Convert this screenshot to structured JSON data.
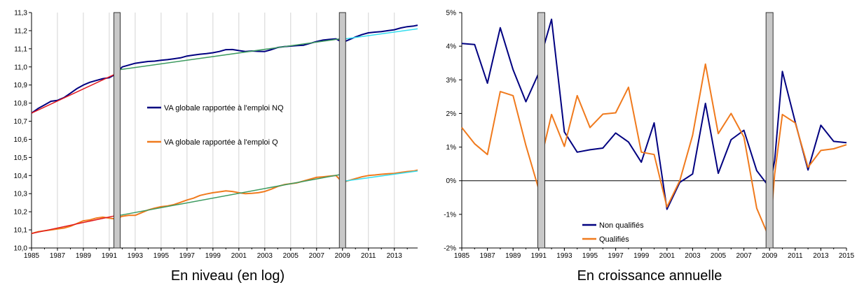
{
  "banner_text": "",
  "colors": {
    "navy": "#000080",
    "orange": "#f07a1d",
    "red": "#e0181e",
    "green": "#3c9a5f",
    "cyan": "#33ddee",
    "bar_fill": "#c8c8c8"
  },
  "chart_data": [
    {
      "type": "line",
      "caption": "En niveau (en log)",
      "xlabel": "",
      "ylabel": "",
      "xlim": [
        1985,
        2014.8
      ],
      "ylim": [
        10.0,
        11.3
      ],
      "y_ticks": [
        "10,0",
        "10,1",
        "10,2",
        "10,3",
        "10,4",
        "10,5",
        "10,6",
        "10,7",
        "10,8",
        "10,9",
        "11,0",
        "11,1",
        "11,2",
        "11,3"
      ],
      "x_ticks": [
        "1985",
        "1987",
        "1989",
        "1991",
        "1993",
        "1995",
        "1997",
        "1999",
        "2001",
        "2003",
        "2005",
        "2007",
        "2009",
        "2011",
        "2013"
      ],
      "grid": "vertical",
      "break_bars": [
        1991.6,
        2009
      ],
      "legend": [
        "VA globale rapportée à l'emploi NQ",
        "VA globale rapportée à l'emploi Q"
      ],
      "series": [
        {
          "name": "VA globale rapportée à l'emploi NQ",
          "color": "navy",
          "x": [
            1985,
            1985.5,
            1986,
            1986.5,
            1987,
            1987.5,
            1988,
            1988.5,
            1989,
            1989.5,
            1990,
            1990.5,
            1991,
            1991.5,
            1992,
            1992.5,
            1993,
            1993.5,
            1994,
            1994.5,
            1995,
            1995.5,
            1996,
            1996.5,
            1997,
            1997.5,
            1998,
            1998.5,
            1999,
            1999.5,
            2000,
            2000.5,
            2001,
            2001.5,
            2002,
            2002.5,
            2003,
            2003.5,
            2004,
            2004.5,
            2005,
            2005.5,
            2006,
            2006.5,
            2007,
            2007.5,
            2008,
            2008.5,
            2009,
            2009.5,
            2010,
            2010.5,
            2011,
            2011.5,
            2012,
            2012.5,
            2013,
            2013.5,
            2014,
            2014.5,
            2014.8
          ],
          "y": [
            10.745,
            10.77,
            10.79,
            10.81,
            10.815,
            10.83,
            10.855,
            10.88,
            10.9,
            10.915,
            10.925,
            10.935,
            10.94,
            10.96,
            11.0,
            11.01,
            11.02,
            11.025,
            11.03,
            11.032,
            11.037,
            11.04,
            11.045,
            11.05,
            11.06,
            11.065,
            11.07,
            11.073,
            11.078,
            11.085,
            11.095,
            11.096,
            11.09,
            11.085,
            11.088,
            11.086,
            11.085,
            11.095,
            11.107,
            11.112,
            11.115,
            11.118,
            11.12,
            11.13,
            11.14,
            11.148,
            11.152,
            11.155,
            11.135,
            11.15,
            11.165,
            11.178,
            11.188,
            11.192,
            11.195,
            11.2,
            11.205,
            11.215,
            11.222,
            11.226,
            11.23
          ]
        },
        {
          "name": "VA globale rapportée à l'emploi Q",
          "color": "orange",
          "x": [
            1985,
            1985.5,
            1986,
            1986.5,
            1987,
            1987.5,
            1988,
            1988.5,
            1989,
            1989.5,
            1990,
            1990.5,
            1991,
            1991.5,
            1992,
            1992.5,
            1993,
            1993.5,
            1994,
            1994.5,
            1995,
            1995.5,
            1996,
            1996.5,
            1997,
            1997.5,
            1998,
            1998.5,
            1999,
            1999.5,
            2000,
            2000.5,
            2001,
            2001.5,
            2002,
            2002.5,
            2003,
            2003.5,
            2004,
            2004.5,
            2005,
            2005.5,
            2006,
            2006.5,
            2007,
            2007.5,
            2008,
            2008.5,
            2009,
            2009.5,
            2010,
            2010.5,
            2011,
            2011.5,
            2012,
            2012.5,
            2013,
            2013.5,
            2014,
            2014.5,
            2014.8
          ],
          "y": [
            10.08,
            10.09,
            10.095,
            10.1,
            10.105,
            10.11,
            10.12,
            10.135,
            10.15,
            10.155,
            10.165,
            10.17,
            10.165,
            10.16,
            10.175,
            10.18,
            10.18,
            10.195,
            10.21,
            10.22,
            10.228,
            10.232,
            10.24,
            10.252,
            10.265,
            10.275,
            10.29,
            10.298,
            10.305,
            10.31,
            10.315,
            10.312,
            10.305,
            10.3,
            10.302,
            10.305,
            10.312,
            10.325,
            10.34,
            10.35,
            10.355,
            10.36,
            10.37,
            10.38,
            10.39,
            10.393,
            10.397,
            10.4,
            10.362,
            10.373,
            10.383,
            10.393,
            10.4,
            10.403,
            10.407,
            10.41,
            10.412,
            10.417,
            10.422,
            10.425,
            10.43
          ]
        },
        {
          "name": "",
          "color": "red",
          "x": [
            1985,
            1991.6
          ],
          "y": [
            10.745,
            10.965
          ]
        },
        {
          "name": "",
          "color": "green",
          "x": [
            1991.8,
            2008.8
          ],
          "y": [
            10.985,
            11.155
          ]
        },
        {
          "name": "",
          "color": "cyan",
          "x": [
            2009.2,
            2014.8
          ],
          "y": [
            11.155,
            11.21
          ]
        },
        {
          "name": "",
          "color": "red",
          "x": [
            1985,
            1991.6
          ],
          "y": [
            10.08,
            10.18
          ]
        },
        {
          "name": "",
          "color": "green",
          "x": [
            1991.8,
            2008.8
          ],
          "y": [
            10.18,
            10.405
          ]
        },
        {
          "name": "",
          "color": "cyan",
          "x": [
            2009.2,
            2014.8
          ],
          "y": [
            10.37,
            10.425
          ]
        }
      ]
    },
    {
      "type": "line",
      "caption": "En croissance annuelle",
      "xlabel": "",
      "ylabel": "",
      "xlim": [
        1985,
        2015
      ],
      "ylim": [
        -2,
        5
      ],
      "y_ticks": [
        "-2%",
        "-1%",
        "0%",
        "1%",
        "2%",
        "3%",
        "4%",
        "5%"
      ],
      "x_ticks": [
        "1985",
        "1987",
        "1989",
        "1991",
        "1993",
        "1995",
        "1997",
        "1999",
        "2001",
        "2003",
        "2005",
        "2007",
        "2009",
        "2011",
        "2013",
        "2015"
      ],
      "x_tick_values": [
        1985,
        1987,
        1989,
        1991,
        1993,
        1995,
        1997,
        1999,
        2001,
        2003,
        2005,
        2007,
        2009,
        2011,
        2013,
        2015
      ],
      "break_bars": [
        1991.2,
        2009
      ],
      "legend": [
        "Non qualifiés",
        "Qualifiés"
      ],
      "series": [
        {
          "name": "Non qualifiés",
          "color": "navy",
          "x": [
            1985,
            1986,
            1987,
            1988,
            1989,
            1990,
            1991,
            1991.4,
            1992,
            1993,
            1994,
            1995,
            1996,
            1997,
            1998,
            1999,
            2000,
            2001,
            2002,
            2003,
            2004,
            2005,
            2006,
            2007,
            2008,
            2009,
            2009.4,
            2010,
            2011,
            2012,
            2013,
            2014,
            2015
          ],
          "y": [
            4.08,
            4.05,
            2.9,
            4.55,
            3.3,
            2.35,
            3.2,
            4.0,
            4.8,
            1.45,
            0.85,
            0.92,
            0.97,
            1.42,
            1.15,
            0.55,
            1.72,
            -0.85,
            -0.05,
            0.2,
            2.3,
            0.22,
            1.22,
            1.5,
            0.3,
            -0.2,
            0.6,
            3.25,
            1.75,
            0.32,
            1.65,
            1.17,
            1.13
          ]
        },
        {
          "name": "Qualifiés",
          "color": "orange",
          "x": [
            1985,
            1986,
            1987,
            1988,
            1989,
            1990,
            1991,
            1991.4,
            1992,
            1993,
            1994,
            1995,
            1996,
            1997,
            1998,
            1999,
            2000,
            2001,
            2002,
            2003,
            2004,
            2005,
            2006,
            2007,
            2008,
            2009,
            2009.4,
            2010,
            2011,
            2012,
            2013,
            2014,
            2015
          ],
          "y": [
            1.58,
            1.1,
            0.78,
            2.65,
            2.53,
            1.05,
            -0.25,
            1.0,
            1.97,
            1.02,
            2.53,
            1.58,
            1.98,
            2.02,
            2.78,
            0.85,
            0.78,
            -0.78,
            0.0,
            1.35,
            3.47,
            1.4,
            2.0,
            1.3,
            -0.82,
            -1.72,
            0.2,
            1.97,
            1.72,
            0.4,
            0.9,
            0.95,
            1.07
          ]
        }
      ]
    }
  ]
}
